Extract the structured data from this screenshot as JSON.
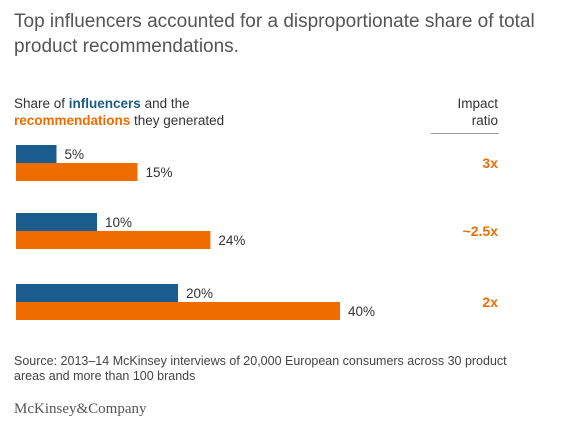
{
  "title": "Top influencers accounted for a disproportionate share of total product recommendations.",
  "subtitle": {
    "part1": "Share of ",
    "influencers": "influencers",
    "part2": " and the",
    "recommendations": "recommendations",
    "part3": " they generated"
  },
  "ratio_header": {
    "line1": "Impact",
    "line2": "ratio"
  },
  "source": "Source: 2013–14 McKinsey interviews of 20,000 European consumers across 30 product areas and more than 100 brands",
  "logo": "McKinsey&Company",
  "colors": {
    "influencers": "#1a5c8e",
    "recommendations": "#ef6c00"
  },
  "chart_data": {
    "type": "bar",
    "orientation": "horizontal",
    "series": [
      {
        "name": "influencers",
        "values": [
          5,
          10,
          20
        ],
        "labels": [
          "5%",
          "10%",
          "20%"
        ]
      },
      {
        "name": "recommendations",
        "values": [
          15,
          24,
          40
        ],
        "labels": [
          "15%",
          "24%",
          "40%"
        ]
      }
    ],
    "impact_ratio": [
      "3x",
      "~2.5x",
      "2x"
    ],
    "xlim": [
      0,
      40
    ],
    "grid": false,
    "legend": "none"
  }
}
